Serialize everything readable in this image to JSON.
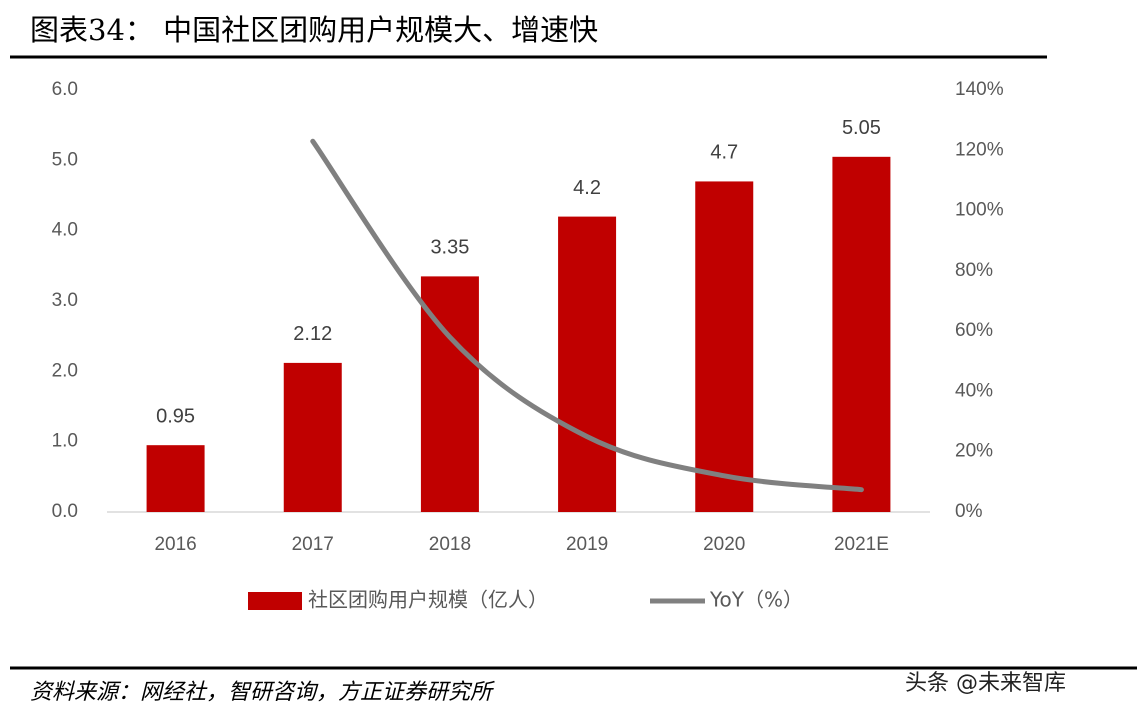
{
  "chart_data": {
    "type": "bar-line",
    "title": "图表34：  中国社区团购用户规模大、增速快",
    "categories": [
      "2016",
      "2017",
      "2018",
      "2019",
      "2020",
      "2021E"
    ],
    "series": [
      {
        "name": "社区团购用户规模（亿人）",
        "type": "bar",
        "color": "#c00000",
        "values": [
          0.95,
          2.12,
          3.35,
          4.2,
          4.7,
          5.05
        ]
      },
      {
        "name": "YoY（%）",
        "type": "line",
        "axis": "y2",
        "color": "#808080",
        "values": [
          null,
          123,
          58,
          25,
          12,
          7.4
        ]
      }
    ],
    "ylim": [
      0,
      6
    ],
    "yticks": [
      {
        "value": 0,
        "label": "0.0"
      },
      {
        "value": 1,
        "label": "1.0"
      },
      {
        "value": 2,
        "label": "2.0"
      },
      {
        "value": 3,
        "label": "3.0"
      },
      {
        "value": 4,
        "label": "4.0"
      },
      {
        "value": 5,
        "label": "5.0"
      },
      {
        "value": 6,
        "label": "6.0"
      }
    ],
    "y2lim": [
      0,
      140
    ],
    "y2ticks": [
      {
        "value": 0,
        "label": "0%"
      },
      {
        "value": 20,
        "label": "20%"
      },
      {
        "value": 40,
        "label": "40%"
      },
      {
        "value": 60,
        "label": "60%"
      },
      {
        "value": 80,
        "label": "80%"
      },
      {
        "value": 100,
        "label": "100%"
      },
      {
        "value": 120,
        "label": "120%"
      },
      {
        "value": 140,
        "label": "140%"
      }
    ],
    "legend": "bottom"
  },
  "source": "资料来源：网经社，智研咨询，方正证券研究所",
  "watermark": "头条 @未来智库"
}
